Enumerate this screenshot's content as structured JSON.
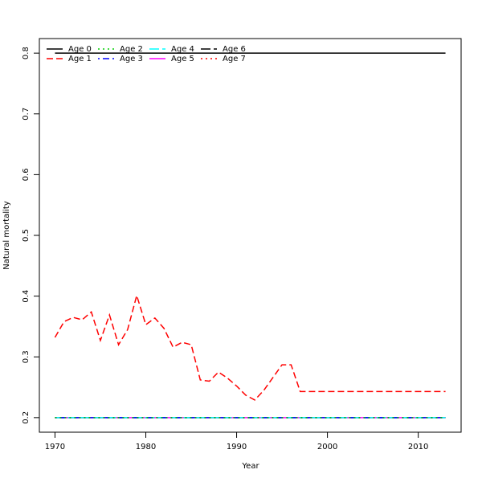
{
  "chart_data": {
    "type": "line",
    "xlabel": "Year",
    "ylabel": "Natural mortality",
    "x": [
      1970,
      1971,
      1972,
      1973,
      1974,
      1975,
      1976,
      1977,
      1978,
      1979,
      1980,
      1981,
      1982,
      1983,
      1984,
      1985,
      1986,
      1987,
      1988,
      1989,
      1990,
      1991,
      1992,
      1993,
      1994,
      1995,
      1996,
      1997,
      1998,
      1999,
      2000,
      2001,
      2002,
      2003,
      2004,
      2005,
      2006,
      2007,
      2008,
      2009,
      2010,
      2011,
      2012,
      2013
    ],
    "xlim": [
      1968.28,
      2014.72
    ],
    "xticks": [
      1970,
      1980,
      1990,
      2000,
      2010
    ],
    "ylim": [
      0.176,
      0.824
    ],
    "yticks": [
      0.2,
      0.3,
      0.4,
      0.5,
      0.6,
      0.7,
      0.8
    ],
    "legend": "top-left",
    "series": [
      {
        "name": "Age 0",
        "color": "#000000",
        "dash": "solid",
        "values": [
          0.8,
          0.8,
          0.8,
          0.8,
          0.8,
          0.8,
          0.8,
          0.8,
          0.8,
          0.8,
          0.8,
          0.8,
          0.8,
          0.8,
          0.8,
          0.8,
          0.8,
          0.8,
          0.8,
          0.8,
          0.8,
          0.8,
          0.8,
          0.8,
          0.8,
          0.8,
          0.8,
          0.8,
          0.8,
          0.8,
          0.8,
          0.8,
          0.8,
          0.8,
          0.8,
          0.8,
          0.8,
          0.8,
          0.8,
          0.8,
          0.8,
          0.8,
          0.8,
          0.8
        ]
      },
      {
        "name": "Age 1",
        "color": "#ff0000",
        "dash": "dashed",
        "values": [
          0.332,
          0.358,
          0.365,
          0.361,
          0.374,
          0.327,
          0.369,
          0.32,
          0.345,
          0.401,
          0.353,
          0.364,
          0.347,
          0.316,
          0.324,
          0.32,
          0.262,
          0.26,
          0.275,
          0.265,
          0.252,
          0.237,
          0.229,
          0.245,
          0.266,
          0.287,
          0.287,
          0.243,
          0.243,
          0.243,
          0.243,
          0.243,
          0.243,
          0.243,
          0.243,
          0.243,
          0.243,
          0.243,
          0.243,
          0.243,
          0.243,
          0.243,
          0.243,
          0.243
        ]
      },
      {
        "name": "Age 2",
        "color": "#00cd00",
        "dash": "dotted",
        "values": [
          0.2,
          0.2,
          0.2,
          0.2,
          0.2,
          0.2,
          0.2,
          0.2,
          0.2,
          0.2,
          0.2,
          0.2,
          0.2,
          0.2,
          0.2,
          0.2,
          0.2,
          0.2,
          0.2,
          0.2,
          0.2,
          0.2,
          0.2,
          0.2,
          0.2,
          0.2,
          0.2,
          0.2,
          0.2,
          0.2,
          0.2,
          0.2,
          0.2,
          0.2,
          0.2,
          0.2,
          0.2,
          0.2,
          0.2,
          0.2,
          0.2,
          0.2,
          0.2,
          0.2
        ]
      },
      {
        "name": "Age 3",
        "color": "#0000ff",
        "dash": "dotdash",
        "values": [
          0.2,
          0.2,
          0.2,
          0.2,
          0.2,
          0.2,
          0.2,
          0.2,
          0.2,
          0.2,
          0.2,
          0.2,
          0.2,
          0.2,
          0.2,
          0.2,
          0.2,
          0.2,
          0.2,
          0.2,
          0.2,
          0.2,
          0.2,
          0.2,
          0.2,
          0.2,
          0.2,
          0.2,
          0.2,
          0.2,
          0.2,
          0.2,
          0.2,
          0.2,
          0.2,
          0.2,
          0.2,
          0.2,
          0.2,
          0.2,
          0.2,
          0.2,
          0.2,
          0.2
        ]
      },
      {
        "name": "Age 4",
        "color": "#00ffff",
        "dash": "longdash",
        "values": [
          0.2,
          0.2,
          0.2,
          0.2,
          0.2,
          0.2,
          0.2,
          0.2,
          0.2,
          0.2,
          0.2,
          0.2,
          0.2,
          0.2,
          0.2,
          0.2,
          0.2,
          0.2,
          0.2,
          0.2,
          0.2,
          0.2,
          0.2,
          0.2,
          0.2,
          0.2,
          0.2,
          0.2,
          0.2,
          0.2,
          0.2,
          0.2,
          0.2,
          0.2,
          0.2,
          0.2,
          0.2,
          0.2,
          0.2,
          0.2,
          0.2,
          0.2,
          0.2,
          0.2
        ]
      },
      {
        "name": "Age 5",
        "color": "#ff00ff",
        "dash": "solid",
        "values": [
          0.2,
          0.2,
          0.2,
          0.2,
          0.2,
          0.2,
          0.2,
          0.2,
          0.2,
          0.2,
          0.2,
          0.2,
          0.2,
          0.2,
          0.2,
          0.2,
          0.2,
          0.2,
          0.2,
          0.2,
          0.2,
          0.2,
          0.2,
          0.2,
          0.2,
          0.2,
          0.2,
          0.2,
          0.2,
          0.2,
          0.2,
          0.2,
          0.2,
          0.2,
          0.2,
          0.2,
          0.2,
          0.2,
          0.2,
          0.2,
          0.2,
          0.2,
          0.2,
          0.2
        ]
      },
      {
        "name": "Age 6",
        "color": "#000000",
        "dash": "longdash",
        "values": [
          0.2,
          0.2,
          0.2,
          0.2,
          0.2,
          0.2,
          0.2,
          0.2,
          0.2,
          0.2,
          0.2,
          0.2,
          0.2,
          0.2,
          0.2,
          0.2,
          0.2,
          0.2,
          0.2,
          0.2,
          0.2,
          0.2,
          0.2,
          0.2,
          0.2,
          0.2,
          0.2,
          0.2,
          0.2,
          0.2,
          0.2,
          0.2,
          0.2,
          0.2,
          0.2,
          0.2,
          0.2,
          0.2,
          0.2,
          0.2,
          0.2,
          0.2,
          0.2,
          0.2
        ]
      },
      {
        "name": "Age 7",
        "color": "#ff0000",
        "dash": "dotted",
        "values": [
          0.2,
          0.2,
          0.2,
          0.2,
          0.2,
          0.2,
          0.2,
          0.2,
          0.2,
          0.2,
          0.2,
          0.2,
          0.2,
          0.2,
          0.2,
          0.2,
          0.2,
          0.2,
          0.2,
          0.2,
          0.2,
          0.2,
          0.2,
          0.2,
          0.2,
          0.2,
          0.2,
          0.2,
          0.2,
          0.2,
          0.2,
          0.2,
          0.2,
          0.2,
          0.2,
          0.2,
          0.2,
          0.2,
          0.2,
          0.2,
          0.2,
          0.2,
          0.2,
          0.2
        ]
      }
    ]
  }
}
